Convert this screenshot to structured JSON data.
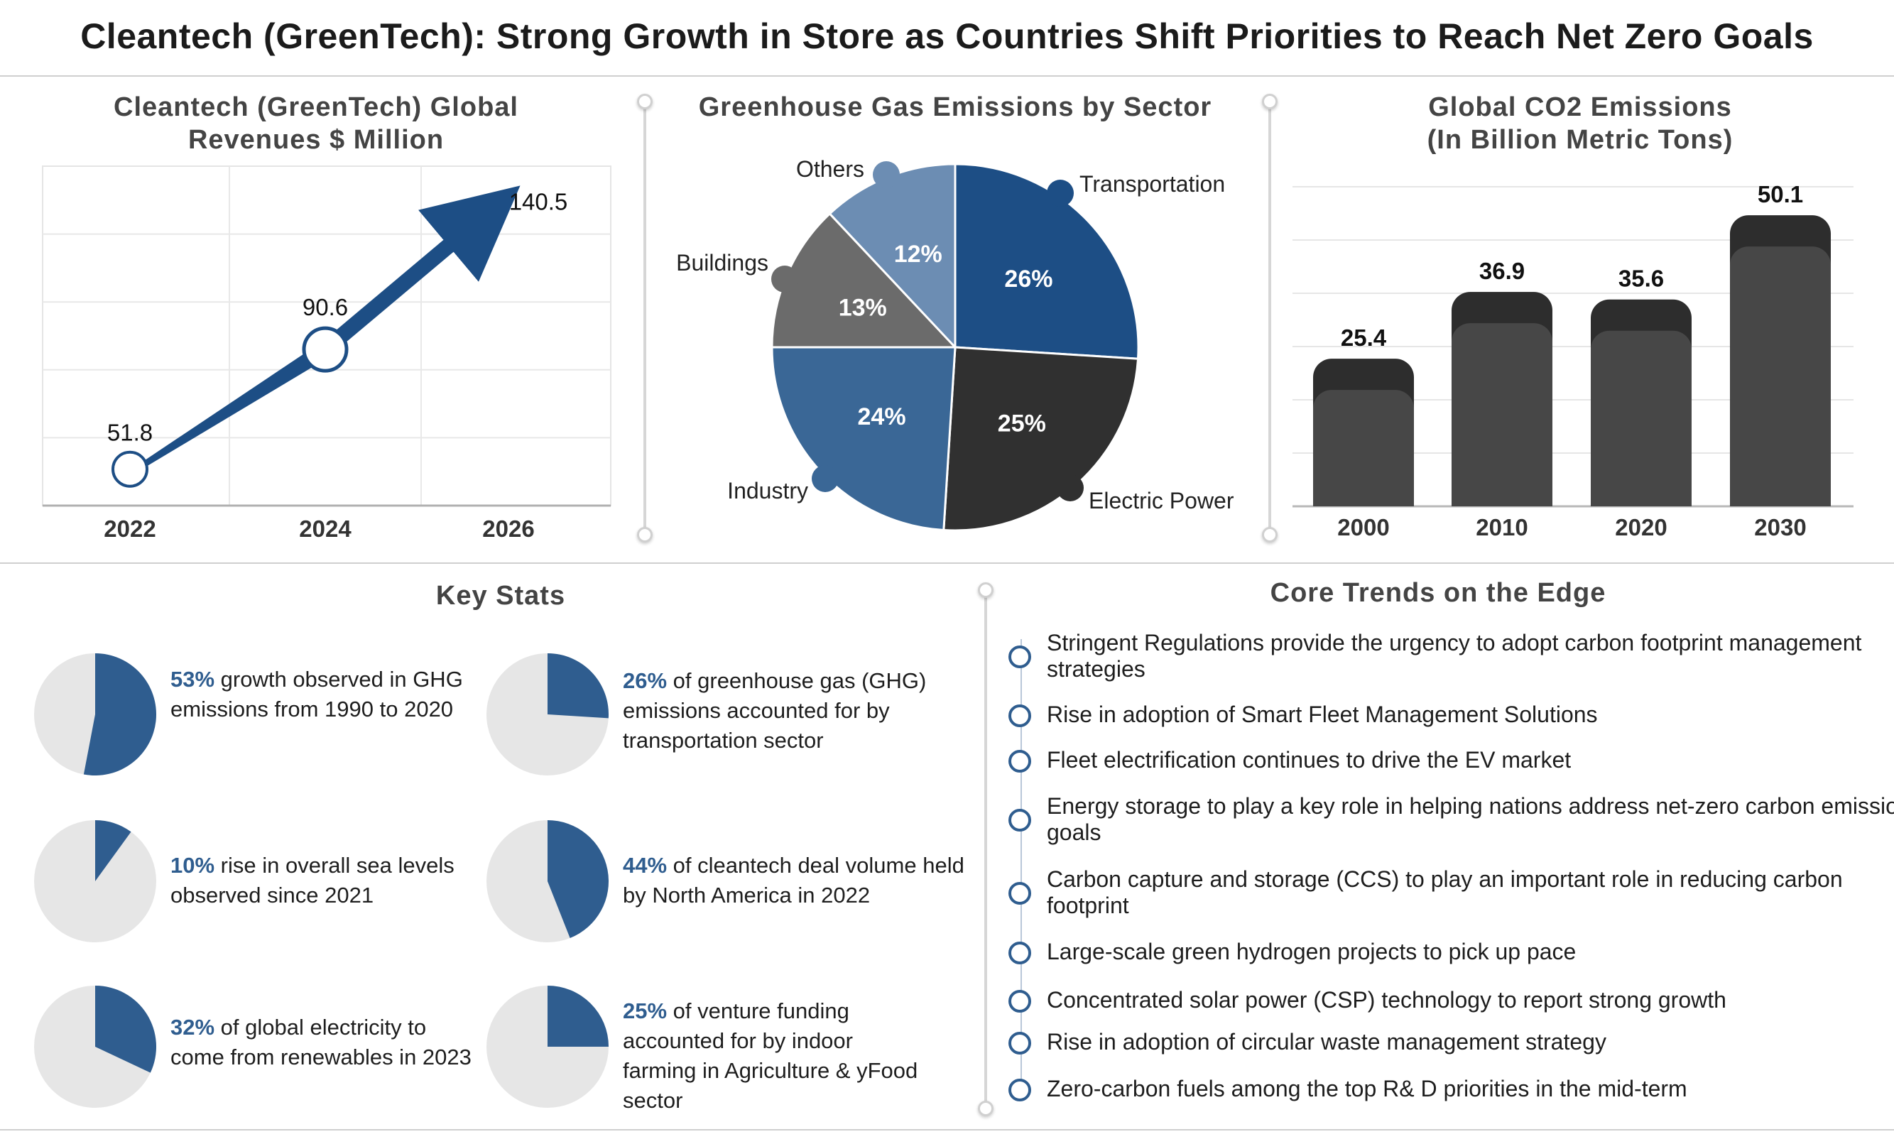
{
  "title": "Cleantech (GreenTech):  Strong Growth in Store as Countries Shift Priorities to Reach Net Zero Goals",
  "colors": {
    "navy": "#1d4e85",
    "blue": "#2f5d8f",
    "mid_blue": "#3a6796",
    "light_blue": "#6c8db3",
    "dark": "#303030",
    "gray": "#6b6b6b",
    "bar": "#474747",
    "bar_top": "#2d2d2d",
    "pie_bg": "#e6e6e6"
  },
  "revenue_panel": {
    "title_line1": "Cleantech (GreenTech) Global",
    "title_line2": "Revenues $ Million"
  },
  "emissions_sector_panel": {
    "title": "Greenhouse Gas Emissions by Sector"
  },
  "co2_panel": {
    "title_line1": "Global CO2 Emissions",
    "title_line2": "(In Billion Metric Tons)"
  },
  "chart_data": [
    {
      "type": "line",
      "title": "Cleantech (GreenTech) Global Revenues $ Million",
      "x": [
        "2022",
        "2024",
        "2026"
      ],
      "y": [
        51.8,
        90.6,
        140.5
      ],
      "ylim": [
        40,
        150
      ],
      "grid": true
    },
    {
      "type": "pie",
      "title": "Greenhouse Gas Emissions by Sector",
      "labels": [
        "Transportation",
        "Electric Power",
        "Industry",
        "Buildings",
        "Others"
      ],
      "values": [
        26,
        25,
        24,
        13,
        12
      ],
      "value_labels": [
        "26%",
        "25%",
        "24%",
        "13%",
        "12%"
      ],
      "colors": [
        "#1d4e85",
        "#303030",
        "#3a6796",
        "#6b6b6b",
        "#6c8db3"
      ]
    },
    {
      "type": "bar",
      "title": "Global CO2 Emissions (In Billion Metric Tons)",
      "categories": [
        "2000",
        "2010",
        "2020",
        "2030"
      ],
      "values": [
        25.4,
        36.9,
        35.6,
        50.1
      ],
      "value_labels": [
        "25.4",
        "36.9",
        "35.6",
        "50.1"
      ],
      "ylim": [
        0,
        55
      ],
      "grid": true
    }
  ],
  "key_stats": {
    "title": "Key Stats",
    "items": [
      {
        "value": "53%",
        "text": " growth observed in GHG emissions from 1990 to 2020",
        "fraction": 0.53
      },
      {
        "value": "26%",
        "text": " of greenhouse gas (GHG) emissions accounted for by transportation sector",
        "fraction": 0.26
      },
      {
        "value": "10%",
        "text": " rise in overall sea levels observed since 2021",
        "fraction": 0.1
      },
      {
        "value": "44%",
        "text": " of cleantech deal volume held by North America in 2022",
        "fraction": 0.44
      },
      {
        "value": "32%",
        "text": " of global electricity to come from renewables in 2023",
        "fraction": 0.32
      },
      {
        "value": "25%",
        "text": " of venture funding accounted for by indoor farming in Agriculture & yFood sector",
        "fraction": 0.25
      }
    ]
  },
  "core_trends": {
    "title": "Core Trends on the Edge",
    "items": [
      "Stringent Regulations provide the urgency to adopt carbon footprint management strategies",
      "Rise in adoption of Smart Fleet Management Solutions",
      "Fleet electrification continues to drive the EV market",
      "Energy storage to play a key role in helping nations address net-zero carbon emission goals",
      "Carbon capture and storage (CCS) to play an important role in reducing carbon footprint",
      "Large-scale green hydrogen projects to pick up pace",
      "Concentrated solar power (CSP) technology to report strong growth",
      "Rise in adoption of circular waste management strategy",
      "Zero-carbon fuels among the top R& D priorities in the mid-term"
    ]
  }
}
